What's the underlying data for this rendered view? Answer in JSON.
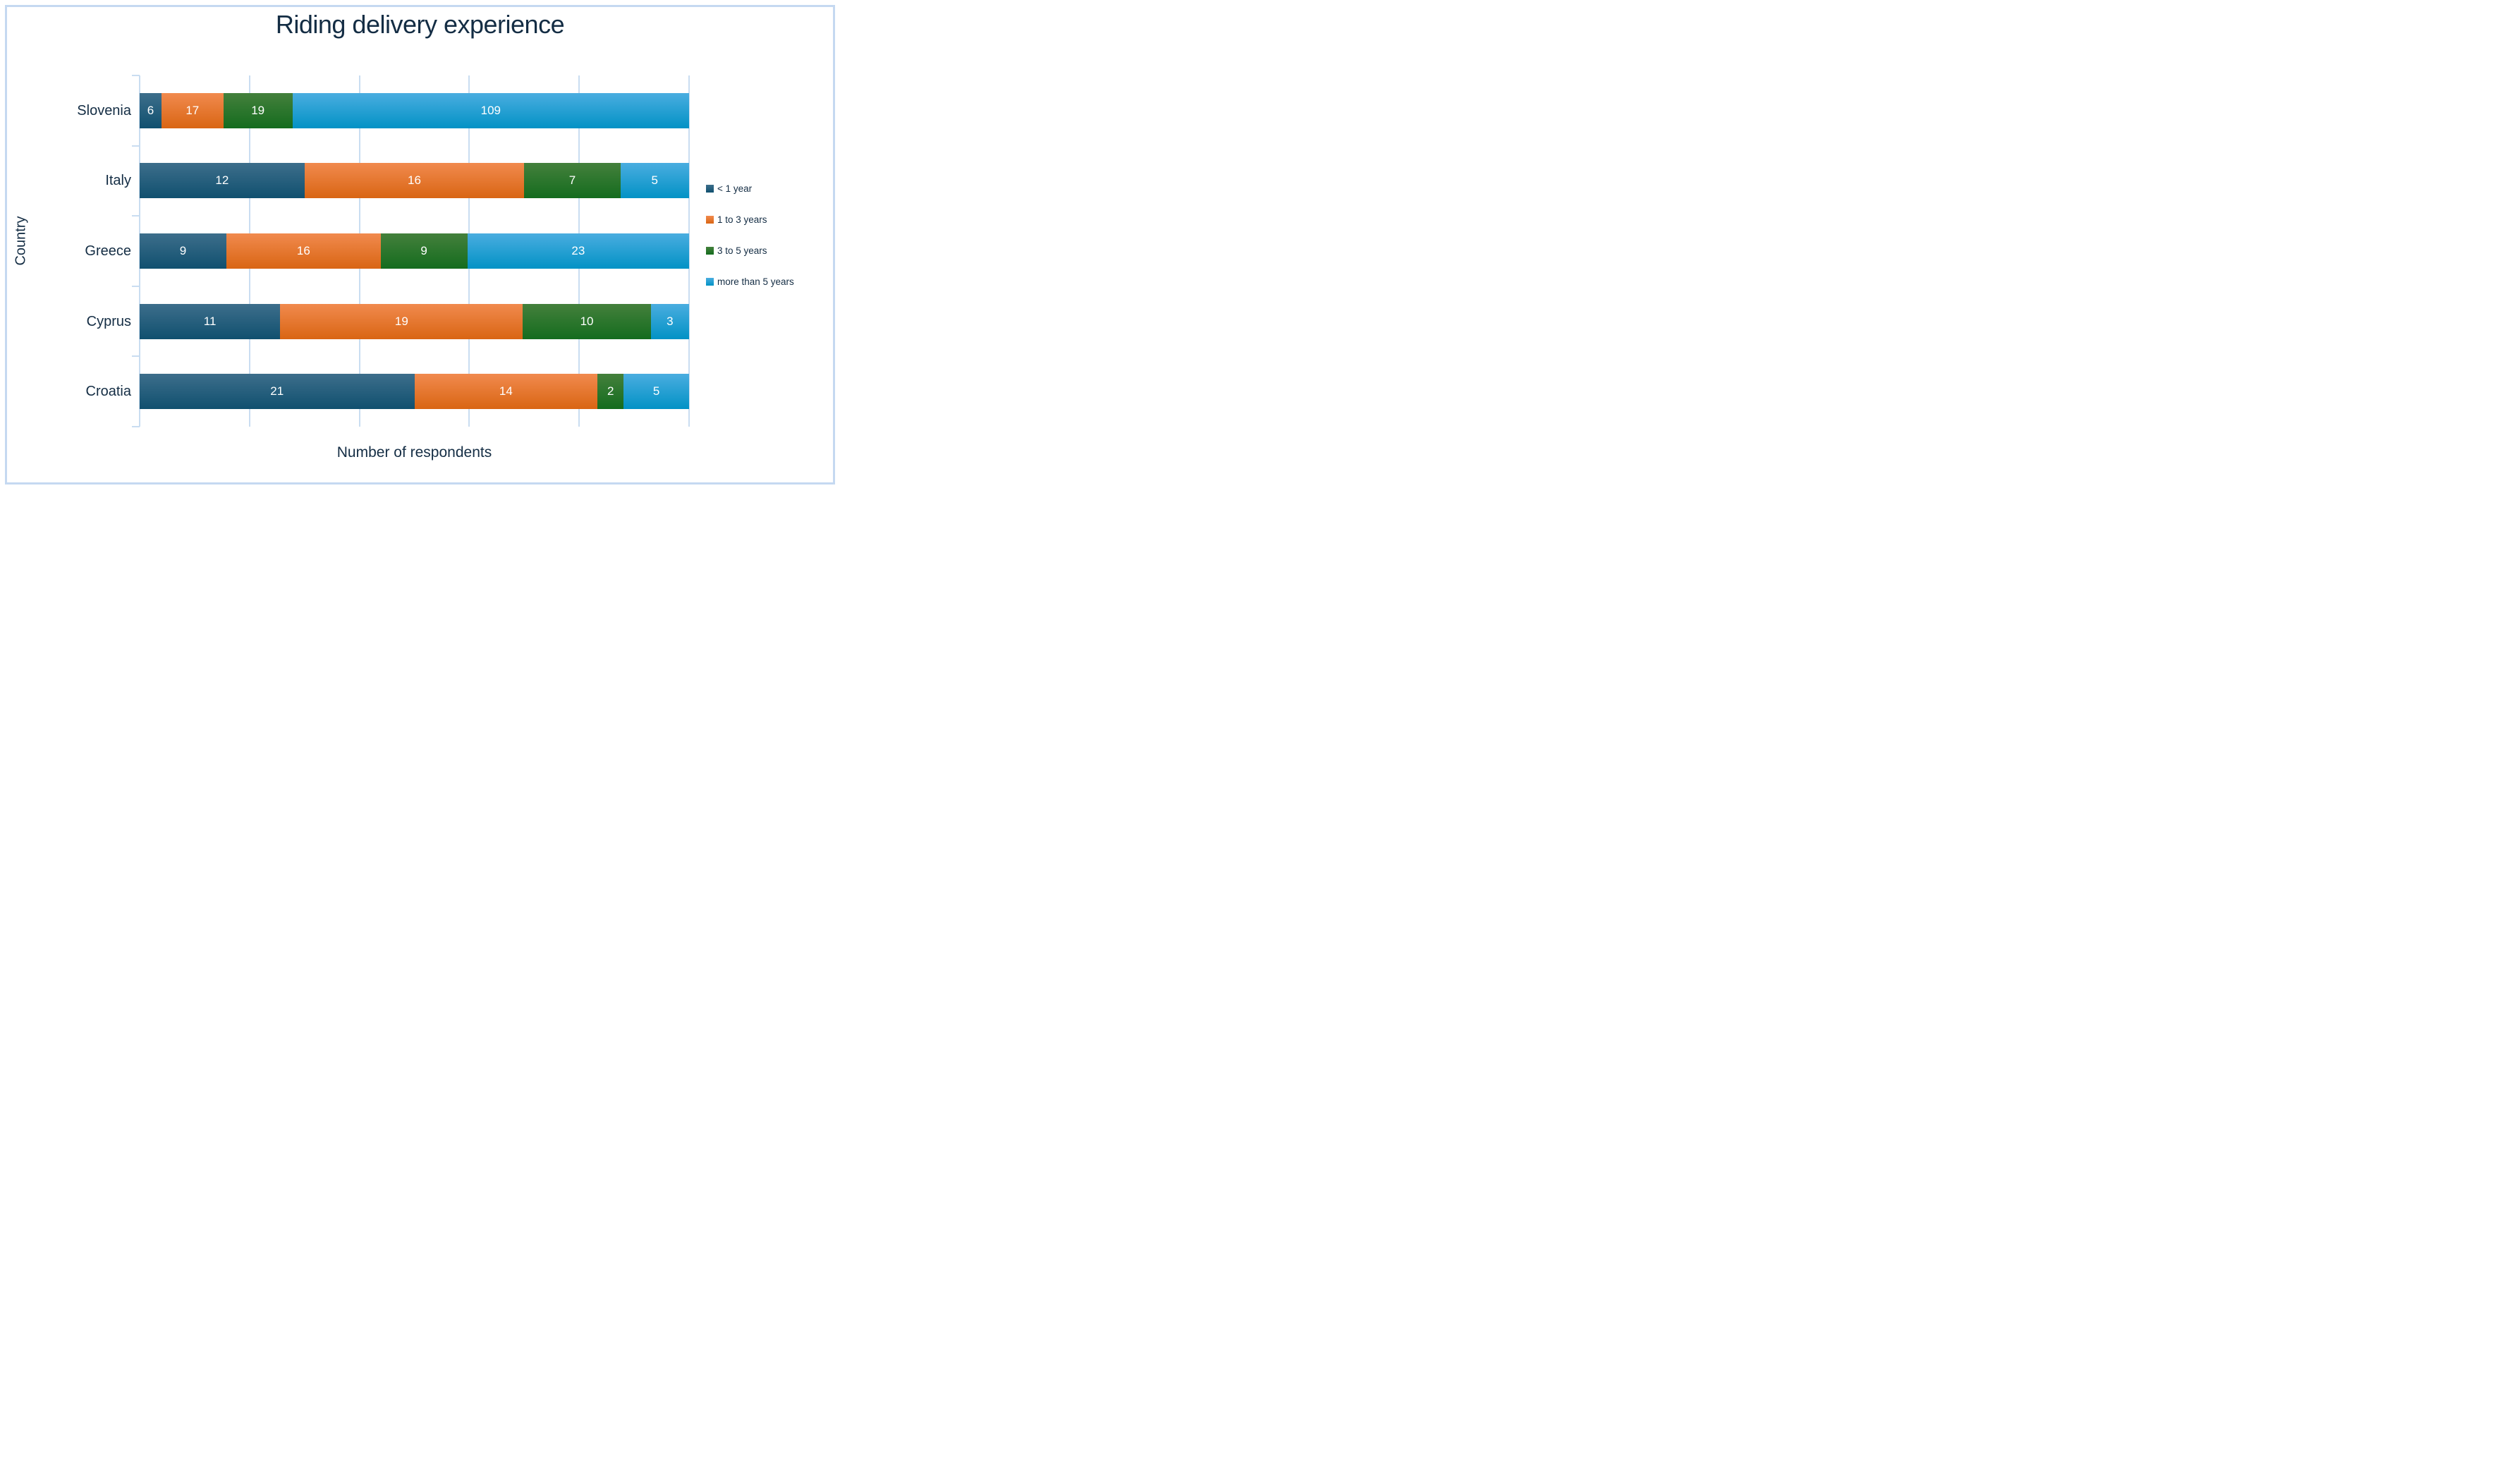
{
  "chart_data": {
    "type": "bar",
    "subtype": "100%-stacked-horizontal",
    "title": "Riding delivery experience",
    "xlabel": "Number of respondents",
    "ylabel": "Country",
    "categories": [
      "Slovenia",
      "Italy",
      "Greece",
      "Cyprus",
      "Croatia"
    ],
    "series": [
      {
        "name": "< 1 year",
        "values": [
          6,
          12,
          9,
          11,
          21
        ],
        "gradient_top": "#3d6e8b",
        "gradient_bottom": "#10506f"
      },
      {
        "name": "1 to 3 years",
        "values": [
          17,
          16,
          16,
          19,
          14
        ],
        "gradient_top": "#f18a4e",
        "gradient_bottom": "#d96513"
      },
      {
        "name": "3 to 5 years",
        "values": [
          19,
          7,
          9,
          10,
          2
        ],
        "gradient_top": "#44803c",
        "gradient_bottom": "#146c1e"
      },
      {
        "name": "more than 5 years",
        "values": [
          109,
          5,
          23,
          3,
          5
        ],
        "gradient_top": "#4aade0",
        "gradient_bottom": "#0292c5"
      }
    ],
    "totals_note": "each bar spans full axis width (percent-stacked), labels show absolute counts",
    "data_labels": true,
    "legend_position": "right",
    "grid": "vertical-only",
    "gridline_count": 6
  },
  "colors": {
    "text": "#142d44",
    "gridline": "#c9ddf1",
    "frame_border": "#c5d9f1",
    "background": "#ffffff",
    "bar_label": "#ffffff"
  }
}
